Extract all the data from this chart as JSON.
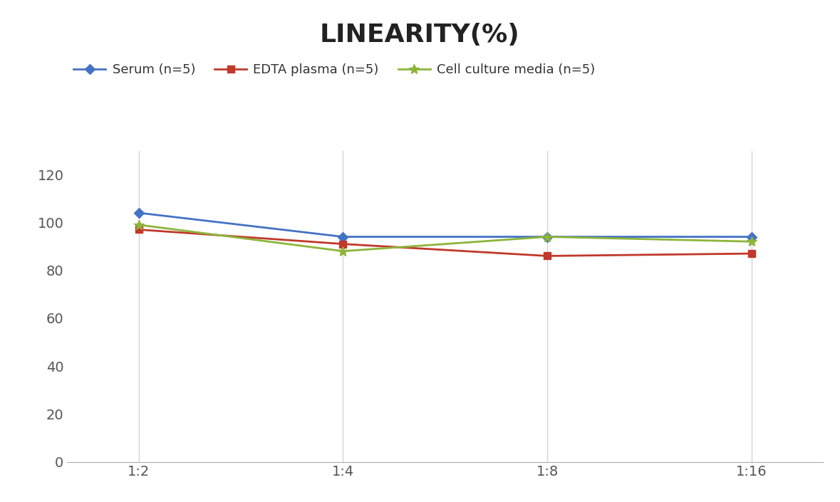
{
  "title": "LINEARITY(%)",
  "title_fontsize": 26,
  "title_fontweight": "bold",
  "x_labels": [
    "1:2",
    "1:4",
    "1:8",
    "1:16"
  ],
  "x_positions": [
    0,
    1,
    2,
    3
  ],
  "series": [
    {
      "label": "Serum (n=5)",
      "values": [
        104,
        94,
        94,
        94
      ],
      "color": "#4472C4",
      "marker": "D",
      "markersize": 7,
      "linewidth": 2
    },
    {
      "label": "EDTA plasma (n=5)",
      "values": [
        97,
        91,
        86,
        87
      ],
      "color": "#C0392B",
      "marker": "s",
      "markersize": 7,
      "linewidth": 2
    },
    {
      "label": "Cell culture media (n=5)",
      "values": [
        99,
        88,
        94,
        92
      ],
      "color": "#8DB53B",
      "marker": "*",
      "markersize": 10,
      "linewidth": 2
    }
  ],
  "ylim": [
    0,
    130
  ],
  "yticks": [
    0,
    20,
    40,
    60,
    80,
    100,
    120
  ],
  "background_color": "#ffffff",
  "grid_color": "#d5d5d5",
  "legend_fontsize": 13,
  "tick_fontsize": 14,
  "figsize": [
    11.79,
    7.05
  ],
  "dpi": 100
}
